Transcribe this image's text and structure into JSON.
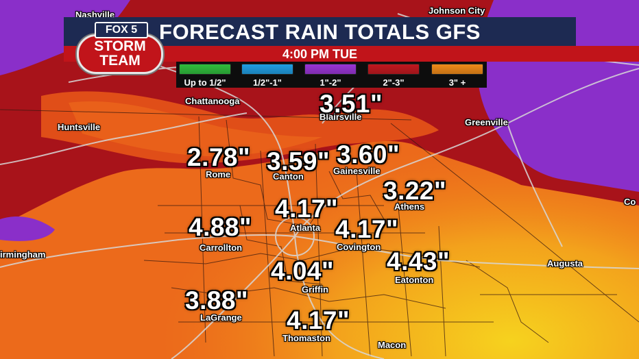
{
  "header": {
    "title": "FORECAST RAIN TOTALS GFS",
    "time": "4:00 PM TUE"
  },
  "logo": {
    "fox": "FOX 5",
    "line1": "STORM",
    "line2": "TEAM"
  },
  "legend": [
    {
      "label": "Up to 1/2\"",
      "color": "#2fbd3c"
    },
    {
      "label": "1/2\"-1\"",
      "color": "#1f9ee2"
    },
    {
      "label": "1\"-2\"",
      "color": "#9a34d6"
    },
    {
      "label": "2\"-3\"",
      "color": "#c2171e"
    },
    {
      "label": "3\" +",
      "color": "#f08a18"
    }
  ],
  "cities": {
    "nashville": "Nashville",
    "johnson_city": "Johnson City",
    "chattanooga": "Chattanooga",
    "huntsville": "Huntsville",
    "blairsville": "Blairsville",
    "greenville": "Greenville",
    "rome": "Rome",
    "canton": "Canton",
    "gainesville": "Gainesville",
    "athens": "Athens",
    "atlanta": "Atlanta",
    "carrollton": "Carrollton",
    "covington": "Covington",
    "birmingham": "irmingham",
    "eatonton": "Eatonton",
    "augusta": "Augusta",
    "griffin": "Griffin",
    "lagrange": "LaGrange",
    "thomaston": "Thomaston",
    "macon": "Macon",
    "columbia_partial": "Co"
  },
  "totals": {
    "blairsville": "3.51\"",
    "rome": "2.78\"",
    "canton": "3.59\"",
    "gainesville": "3.60\"",
    "athens": "3.22\"",
    "atlanta": "4.17\"",
    "carrollton": "4.88\"",
    "covington": "4.17\"",
    "eatonton": "4.43\"",
    "griffin": "4.04\"",
    "lagrange": "3.88\"",
    "thomaston": "4.17\""
  }
}
